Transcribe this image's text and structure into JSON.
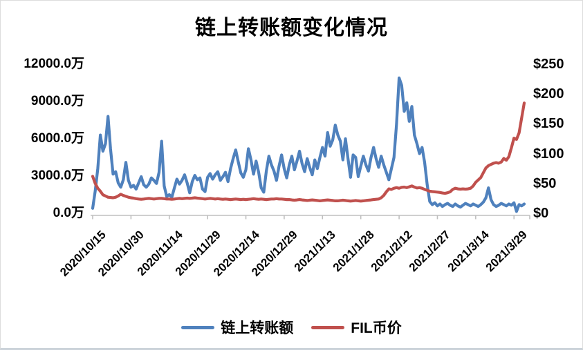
{
  "colors": {
    "transfer_line": "#4F81BD",
    "price_line": "#C0504D",
    "axis": "#BFBFBF",
    "text": "#000000",
    "background": "#FFFFFF"
  },
  "legend": {
    "transfer_label": "链上转账额",
    "price_label": "FIL币价"
  },
  "chart_data": {
    "type": "line",
    "title": "链上转账额变化情况",
    "frequency": "daily",
    "start": "2020/10/15",
    "legend_position": "bottom",
    "grid": "off",
    "x_tick_labels": [
      "2020/10/15",
      "2020/10/30",
      "2020/11/14",
      "2020/11/29",
      "2020/12/14",
      "2020/12/29",
      "2021/1/13",
      "2021/1/28",
      "2021/2/12",
      "2021/2/27",
      "2021/3/14",
      "2021/3/29"
    ],
    "left_axis": {
      "unit": "万",
      "min": 0,
      "max": 12000,
      "ticks": [
        "0.0万",
        "3000.0万",
        "6000.0万",
        "9000.0万",
        "12000.0万"
      ]
    },
    "right_axis": {
      "unit": "$",
      "min": 0,
      "max": 250,
      "ticks": [
        "$0",
        "$50",
        "$100",
        "$150",
        "$200",
        "$250"
      ]
    },
    "series": [
      {
        "name": "链上转账额",
        "axis": "left",
        "color": "#4F81BD",
        "values": [
          400,
          1800,
          3600,
          6300,
          5000,
          5600,
          7800,
          5200,
          3150,
          3350,
          2450,
          2100,
          2700,
          4100,
          2650,
          2100,
          2250,
          1950,
          2450,
          2950,
          2300,
          2100,
          2350,
          2850,
          2650,
          2400,
          3300,
          5800,
          2200,
          1350,
          1500,
          1300,
          2050,
          2750,
          2350,
          2650,
          3100,
          2450,
          1650,
          2550,
          3050,
          2700,
          2850,
          1950,
          1750,
          2900,
          3200,
          2750,
          3100,
          3350,
          2650,
          2950,
          3300,
          2550,
          3600,
          4400,
          5100,
          4150,
          3250,
          2900,
          3500,
          5200,
          4300,
          3150,
          4200,
          3300,
          2050,
          1700,
          3400,
          4600,
          3900,
          3400,
          2650,
          3800,
          4700,
          3600,
          2850,
          3900,
          4600,
          3500,
          4200,
          5000,
          4000,
          3350,
          4400,
          3700,
          3100,
          4300,
          3600,
          4500,
          5300,
          4600,
          6500,
          5400,
          5900,
          7100,
          6300,
          5800,
          4300,
          6000,
          4400,
          2900,
          4700,
          4500,
          2950,
          3800,
          4600,
          3900,
          3400,
          4500,
          5300,
          4400,
          3700,
          4600,
          3900,
          3300,
          2700,
          3600,
          4500,
          7200,
          10900,
          10300,
          8200,
          8900,
          7400,
          8600,
          6300,
          5600,
          4800,
          5300,
          4100,
          2300,
          950,
          700,
          850,
          600,
          750,
          550,
          700,
          800,
          650,
          550,
          750,
          600,
          500,
          650,
          800,
          700,
          600,
          750,
          650,
          550,
          700,
          900,
          1250,
          2050,
          1100,
          700,
          550,
          650,
          800,
          700,
          600,
          750,
          650,
          850,
          150,
          700,
          600,
          750
        ]
      },
      {
        "name": "FIL币价",
        "axis": "right",
        "color": "#C0504D",
        "values": [
          62,
          50,
          42,
          37,
          31,
          29,
          27,
          26.5,
          26,
          27,
          29,
          32,
          30,
          28.5,
          27,
          26,
          25.5,
          24.5,
          24,
          23.5,
          24,
          24.5,
          25,
          24.5,
          24,
          24.5,
          25,
          25,
          24.5,
          24,
          24,
          23.5,
          24,
          24.5,
          25,
          24.5,
          25,
          25.5,
          25,
          25.5,
          26,
          25.5,
          25,
          24.5,
          24,
          24.5,
          25,
          24.5,
          24,
          24.5,
          24,
          23.5,
          24,
          23.5,
          23,
          23.5,
          24,
          23.5,
          23,
          23.5,
          23,
          23.5,
          24,
          24.5,
          24,
          23.5,
          24,
          23.5,
          23,
          23.5,
          24,
          24,
          24.5,
          24,
          24,
          23.5,
          23,
          23,
          22.5,
          22,
          22.5,
          23,
          22.5,
          22,
          21.5,
          22,
          22.5,
          22,
          21.5,
          21,
          21.5,
          22,
          22.5,
          22,
          21.5,
          21,
          21,
          21.5,
          22,
          21.5,
          21,
          20.5,
          21,
          21.5,
          21,
          20.5,
          21,
          21.5,
          22,
          22.5,
          23,
          23.5,
          24,
          26,
          30,
          36,
          41,
          40,
          42,
          43,
          42,
          43.5,
          44,
          43,
          44.5,
          46,
          44,
          42.5,
          43,
          42,
          40,
          38.5,
          37,
          36.5,
          36,
          35.5,
          35,
          34,
          33.5,
          34.5,
          36,
          40,
          42,
          41,
          40.5,
          41,
          40.5,
          41,
          42,
          46,
          52,
          56,
          60,
          68,
          76,
          80,
          82,
          84,
          85,
          84,
          86,
          92,
          89,
          95,
          110,
          126,
          124,
          135,
          160,
          185
        ]
      }
    ]
  }
}
